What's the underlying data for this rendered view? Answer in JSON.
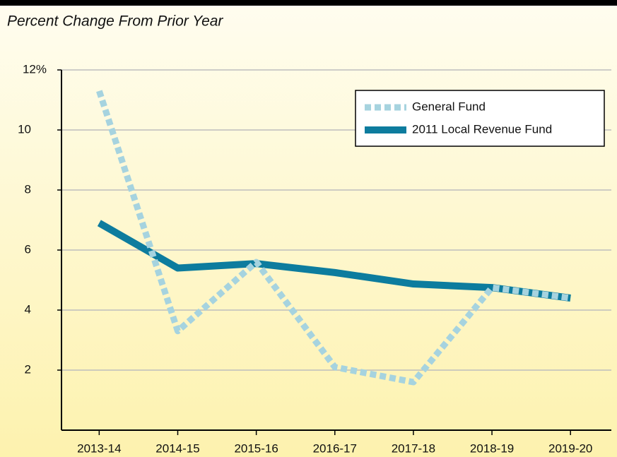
{
  "chart_data": {
    "type": "line",
    "title": "Percent Change From Prior Year",
    "categories": [
      "2013-14",
      "2014-15",
      "2015-16",
      "2016-17",
      "2017-18",
      "2018-19",
      "2019-20"
    ],
    "series": [
      {
        "name": "General Fund",
        "color": "#a6d3df",
        "dashed": true,
        "values": [
          11.3,
          3.3,
          5.6,
          2.1,
          1.6,
          4.75,
          4.4
        ]
      },
      {
        "name": "2011 Local Revenue Fund",
        "color": "#0d7c9e",
        "dashed": false,
        "values": [
          6.9,
          5.4,
          5.55,
          5.25,
          4.87,
          4.75,
          4.4
        ]
      }
    ],
    "ylim": [
      0,
      12
    ],
    "yticks": [
      2,
      4,
      6,
      8,
      10,
      {
        "value": 12,
        "label": "12%"
      }
    ],
    "grid": true,
    "legend": "upper right"
  }
}
